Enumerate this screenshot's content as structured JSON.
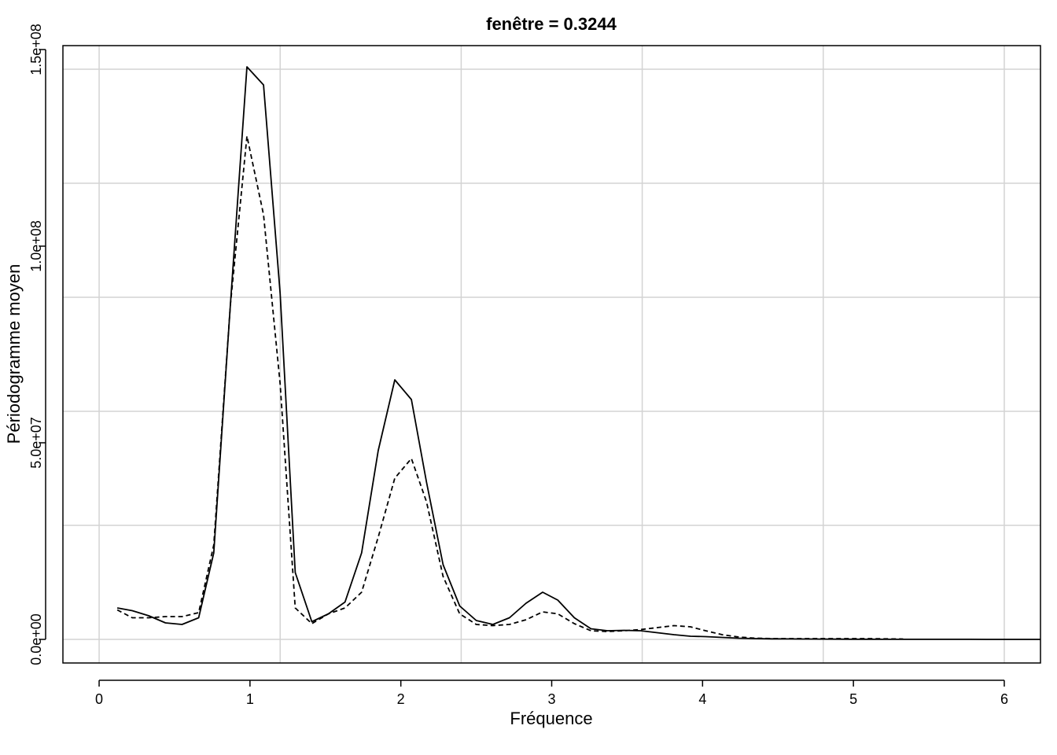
{
  "chart_data": {
    "type": "line",
    "title": "fenêtre =  0.3244",
    "xlabel": "Fréquence",
    "ylabel": "Périodogramme moyen",
    "xlim": [
      -0.24,
      6.24
    ],
    "ylim": [
      -6000000,
      151000000
    ],
    "grid": true,
    "x_ticks": [
      0,
      1,
      2,
      3,
      4,
      5,
      6
    ],
    "x_tick_labels": [
      "0",
      "1",
      "2",
      "3",
      "4",
      "5",
      "6"
    ],
    "x_grid": [
      0,
      1.2,
      2.4,
      3.6,
      4.8,
      6.0
    ],
    "y_ticks": [
      0,
      50000000,
      100000000,
      150000000
    ],
    "y_tick_labels": [
      "0.0e+00",
      "5.0e+07",
      "1.0e+08",
      "1.5e+08"
    ],
    "y_grid": [
      0,
      29000000,
      58000000,
      87000000,
      116000000,
      145000000
    ],
    "colors": {
      "line": "#000000",
      "grid": "#d3d3d3",
      "background": "#ffffff"
    },
    "series": [
      {
        "style": "solid",
        "x": [
          0.12,
          0.22,
          0.33,
          0.44,
          0.55,
          0.66,
          0.76,
          0.87,
          0.98,
          1.09,
          1.2,
          1.3,
          1.41,
          1.52,
          1.63,
          1.74,
          1.85,
          1.96,
          2.07,
          2.17,
          2.28,
          2.39,
          2.5,
          2.61,
          2.72,
          2.83,
          2.94,
          3.04,
          3.15,
          3.26,
          3.37,
          3.48,
          3.59,
          3.7,
          3.81,
          3.92,
          4.02,
          4.13,
          4.24,
          4.35,
          4.46,
          4.57,
          4.68,
          4.79,
          4.9,
          5.0,
          5.11,
          5.22,
          5.33,
          5.44,
          5.55,
          5.66,
          5.77,
          5.88,
          5.98,
          6.09,
          6.2,
          6.24
        ],
        "y": [
          8000000,
          7300000,
          6000000,
          4200000,
          3800000,
          5500000,
          22000000,
          85000000,
          145600000,
          141000000,
          88000000,
          17000000,
          4500000,
          6500000,
          9500000,
          22000000,
          48000000,
          66000000,
          61000000,
          40000000,
          19000000,
          8500000,
          4800000,
          3800000,
          5500000,
          9200000,
          12000000,
          10000000,
          5500000,
          2700000,
          2200000,
          2300000,
          2200000,
          1700000,
          1200000,
          800000,
          700000,
          500000,
          300000,
          200000,
          150000,
          120000,
          100000,
          80000,
          60000,
          50000,
          40000,
          30000,
          25000,
          20000,
          20000,
          15000,
          12000,
          10000,
          8000,
          6000,
          5000,
          5000
        ]
      },
      {
        "style": "dashed",
        "x": [
          0.12,
          0.22,
          0.33,
          0.44,
          0.55,
          0.66,
          0.76,
          0.87,
          0.98,
          1.09,
          1.2,
          1.3,
          1.41,
          1.52,
          1.63,
          1.74,
          1.85,
          1.96,
          2.07,
          2.17,
          2.28,
          2.39,
          2.5,
          2.61,
          2.72,
          2.83,
          2.94,
          3.04,
          3.15,
          3.26,
          3.37,
          3.48,
          3.59,
          3.7,
          3.81,
          3.92,
          4.02,
          4.13,
          4.24,
          4.35,
          4.46,
          4.57,
          4.68,
          4.79,
          4.9,
          5.0,
          5.11,
          5.22,
          5.33
        ],
        "y": [
          7500000,
          5500000,
          5500000,
          5800000,
          5800000,
          6800000,
          24000000,
          85000000,
          128000000,
          108000000,
          65000000,
          8000000,
          4000000,
          6500000,
          8000000,
          12000000,
          26000000,
          41000000,
          46000000,
          35000000,
          16000000,
          6500000,
          3800000,
          3500000,
          3800000,
          5000000,
          7000000,
          6500000,
          4000000,
          2200000,
          2000000,
          2200000,
          2500000,
          3000000,
          3500000,
          3200000,
          2200000,
          1200000,
          600000,
          300000,
          200000,
          200000,
          200000,
          200000,
          200000,
          200000,
          200000,
          150000,
          100000
        ]
      }
    ]
  }
}
